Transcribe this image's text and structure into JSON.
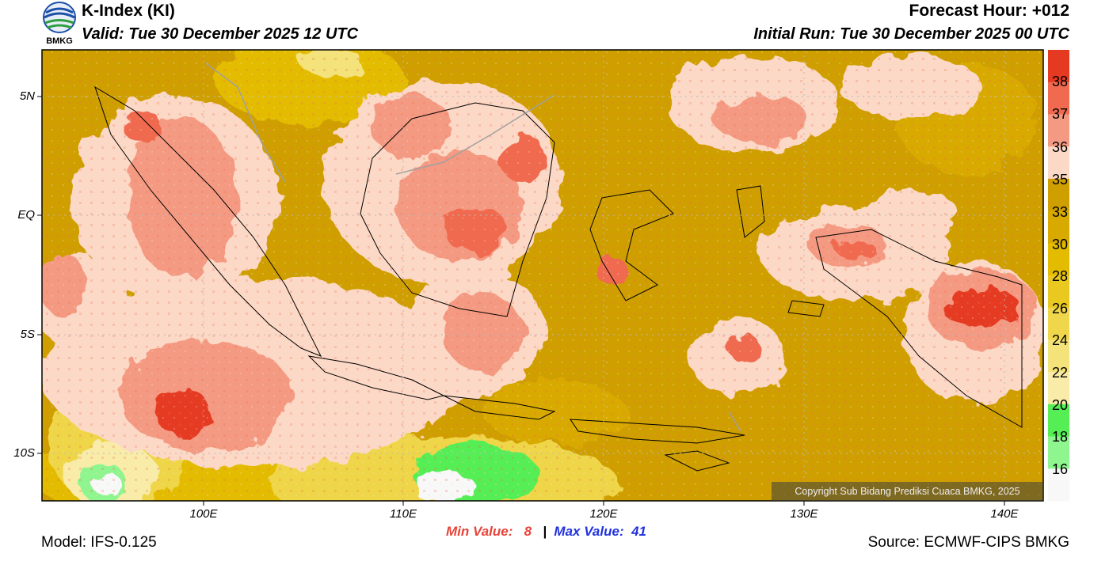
{
  "header": {
    "title": "K-Index (KI)",
    "valid": "Valid: Tue 30 December 2025 12 UTC",
    "forecast_hour": "Forecast Hour: +012",
    "initial_run": "Initial Run: Tue 30 December 2025 00 UTC",
    "logo_text": "BMKG"
  },
  "map": {
    "lat_labels": [
      "5N",
      "EQ",
      "5S",
      "10S"
    ],
    "lon_labels": [
      "100E",
      "110E",
      "120E",
      "130E",
      "140E"
    ],
    "copyright": "Copyright Sub Bidang Prediksi Cuaca BMKG, 2025"
  },
  "colorbar": {
    "labels": [
      "38",
      "37",
      "36",
      "35",
      "33",
      "30",
      "28",
      "26",
      "24",
      "22",
      "20",
      "18",
      "16"
    ],
    "colors": [
      "#e43a22",
      "#f06a50",
      "#f59a82",
      "#fcd9c6",
      "#cf9f00",
      "#d8aa00",
      "#e3bc00",
      "#e9c820",
      "#efd64a",
      "#f4e27a",
      "#f8eca8",
      "#55ee55",
      "#8ff58f",
      "#f8f8f8"
    ]
  },
  "stats": {
    "min_label": "Min Value:",
    "min_value": "8",
    "separator": "|",
    "max_label": "Max Value:",
    "max_value": "41"
  },
  "footer": {
    "model": "Model: IFS-0.125",
    "source": "Source: ECMWF-CIPS BMKG"
  }
}
